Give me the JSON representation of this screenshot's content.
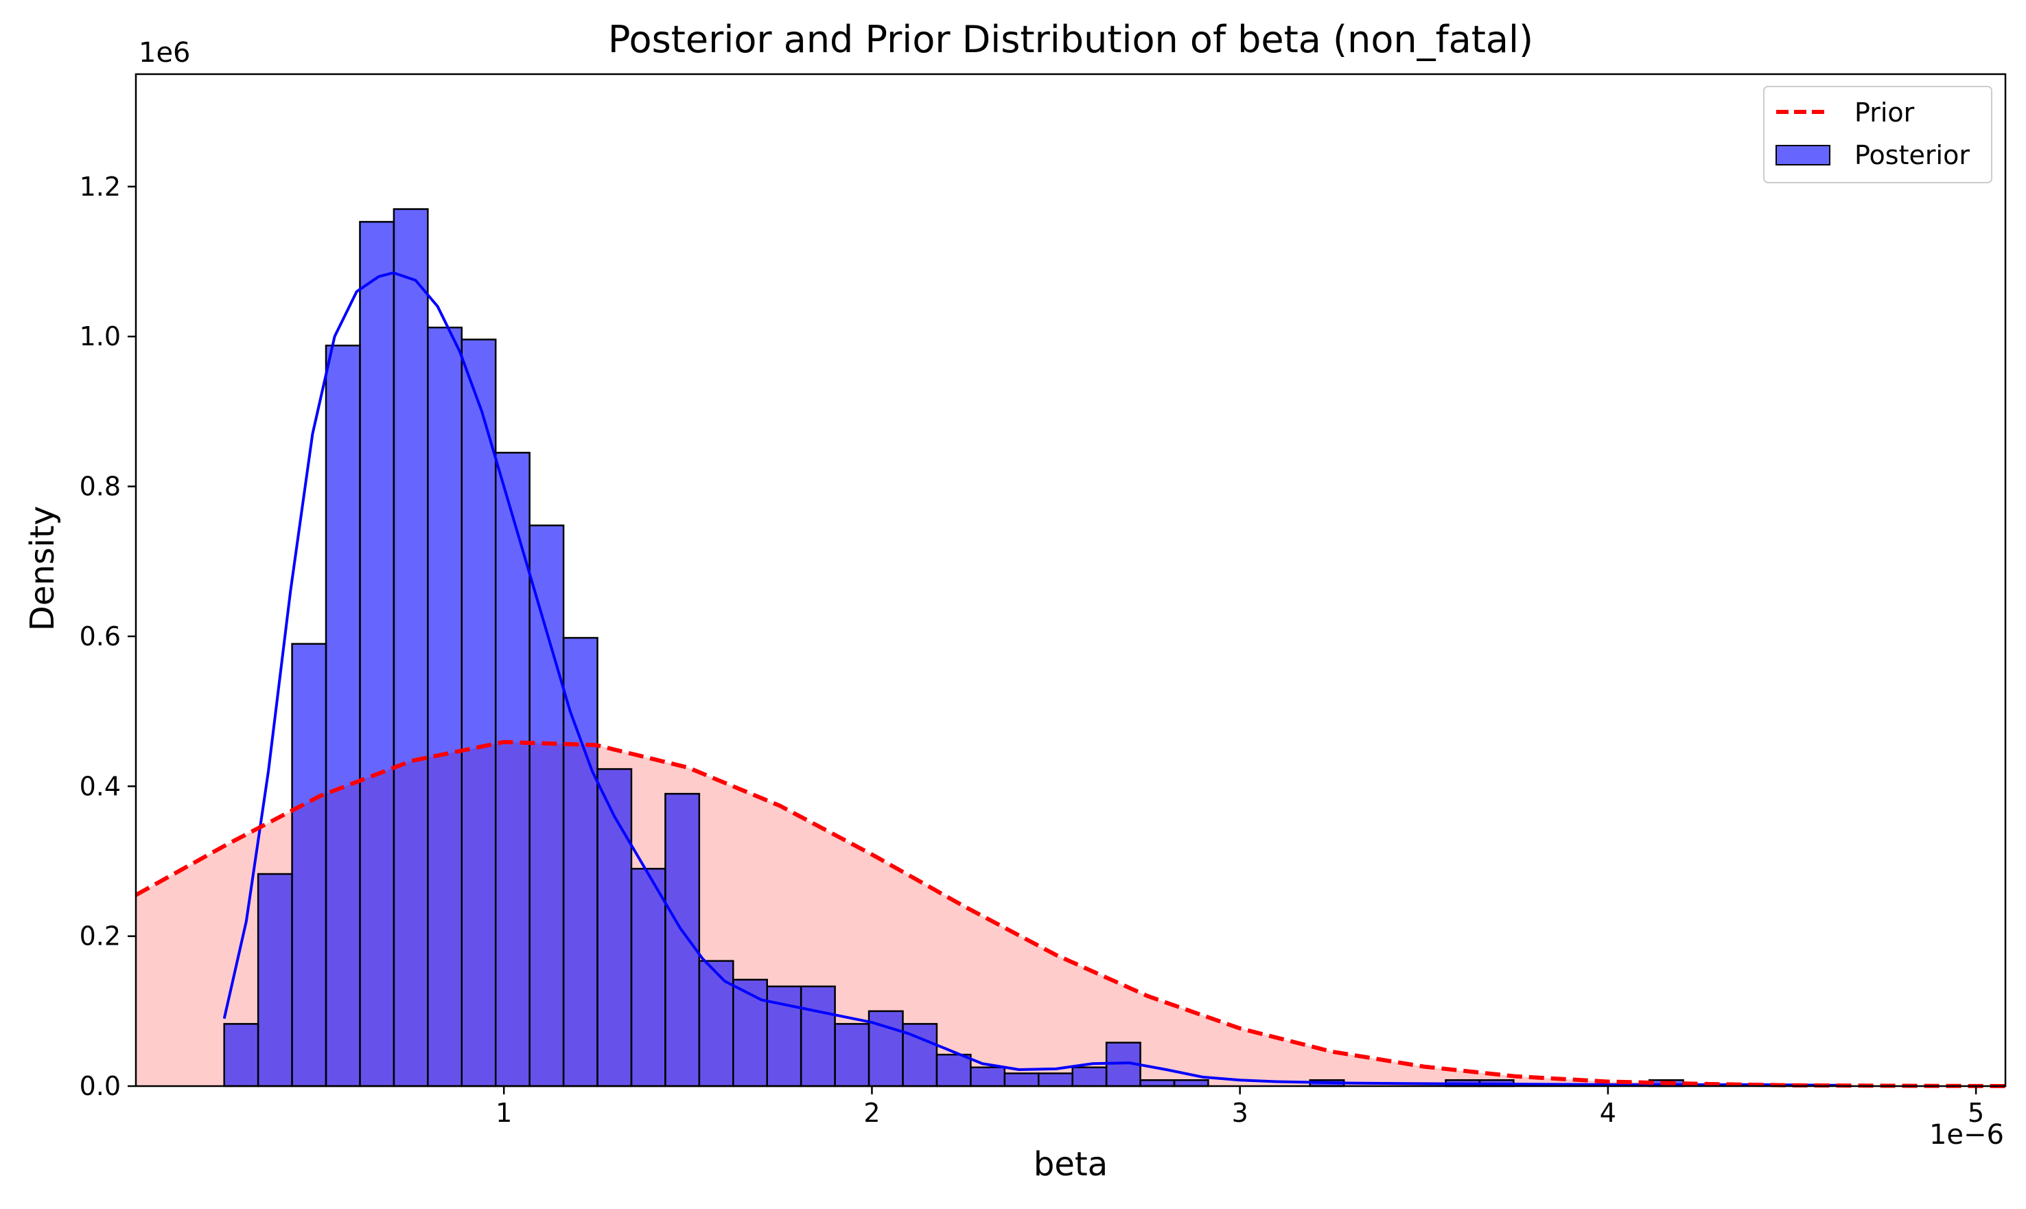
{
  "chart_data": {
    "type": "bar",
    "title": "Posterior and Prior Distribution of beta (non_fatal)",
    "xlabel": "beta",
    "ylabel": "Density",
    "x_offset_text": "1e−6",
    "y_offset_text": "1e6",
    "xlim": [
      0.0,
      5.08
    ],
    "ylim": [
      0.0,
      1.35
    ],
    "x_ticks": [
      1,
      2,
      3,
      4,
      5
    ],
    "x_tick_labels": [
      "1",
      "2",
      "3",
      "4",
      "5"
    ],
    "y_ticks": [
      0.0,
      0.2,
      0.4,
      0.6,
      0.8,
      1.0,
      1.2
    ],
    "y_tick_labels": [
      "0.0",
      "0.2",
      "0.4",
      "0.6",
      "0.8",
      "1.0",
      "1.2"
    ],
    "grid": false,
    "legend": {
      "position": "top-right",
      "entries": [
        "Prior",
        "Posterior"
      ]
    },
    "colors": {
      "posterior": "#0000ff",
      "prior": "#ff0000",
      "prior_fill": "#ffcccc",
      "edge": "#000000"
    },
    "series": [
      {
        "name": "Posterior",
        "kind": "histogram",
        "bin_start": 0.24,
        "bin_width": 0.0922,
        "values": [
          0.083,
          0.283,
          0.59,
          0.988,
          1.153,
          1.17,
          1.012,
          0.996,
          0.845,
          0.748,
          0.598,
          0.423,
          0.29,
          0.39,
          0.167,
          0.142,
          0.133,
          0.133,
          0.083,
          0.1,
          0.083,
          0.042,
          0.025,
          0.017,
          0.017,
          0.025,
          0.058,
          0.008,
          0.008,
          0.0,
          0.0,
          0.0,
          0.008,
          0.0,
          0.0,
          0.0,
          0.008,
          0.008,
          0.0,
          0.0,
          0.0,
          0.0,
          0.008,
          0.0,
          0.0,
          0.0,
          0.0,
          0.0,
          0.0,
          0.0,
          0.0,
          0.0,
          0.0,
          0.0,
          0.008
        ]
      },
      {
        "name": "Posterior",
        "kind": "kde",
        "x": [
          0.24,
          0.3,
          0.36,
          0.42,
          0.48,
          0.54,
          0.6,
          0.66,
          0.7,
          0.76,
          0.82,
          0.88,
          0.94,
          1.0,
          1.06,
          1.12,
          1.18,
          1.24,
          1.3,
          1.36,
          1.42,
          1.48,
          1.54,
          1.6,
          1.7,
          1.8,
          1.9,
          2.0,
          2.1,
          2.2,
          2.3,
          2.4,
          2.5,
          2.6,
          2.7,
          2.8,
          2.9,
          3.0,
          3.1,
          3.3,
          3.6,
          4.0,
          4.4,
          4.65
        ],
        "y": [
          0.09,
          0.22,
          0.42,
          0.66,
          0.87,
          1.0,
          1.06,
          1.08,
          1.085,
          1.075,
          1.04,
          0.98,
          0.9,
          0.8,
          0.7,
          0.6,
          0.5,
          0.42,
          0.36,
          0.31,
          0.26,
          0.21,
          0.17,
          0.14,
          0.115,
          0.105,
          0.095,
          0.085,
          0.07,
          0.05,
          0.03,
          0.022,
          0.023,
          0.03,
          0.031,
          0.022,
          0.012,
          0.008,
          0.006,
          0.004,
          0.003,
          0.002,
          0.002,
          0.001
        ]
      },
      {
        "name": "Prior",
        "kind": "density",
        "x": [
          0.0,
          0.25,
          0.5,
          0.75,
          1.0,
          1.25,
          1.5,
          1.75,
          2.0,
          2.25,
          2.5,
          2.75,
          3.0,
          3.25,
          3.5,
          3.75,
          4.0,
          4.25,
          4.5,
          4.75,
          5.08
        ],
        "y": [
          0.255,
          0.323,
          0.387,
          0.434,
          0.459,
          0.455,
          0.425,
          0.374,
          0.309,
          0.24,
          0.175,
          0.12,
          0.077,
          0.046,
          0.026,
          0.013,
          0.006,
          0.003,
          0.001,
          0.0005,
          0.0
        ]
      }
    ]
  }
}
